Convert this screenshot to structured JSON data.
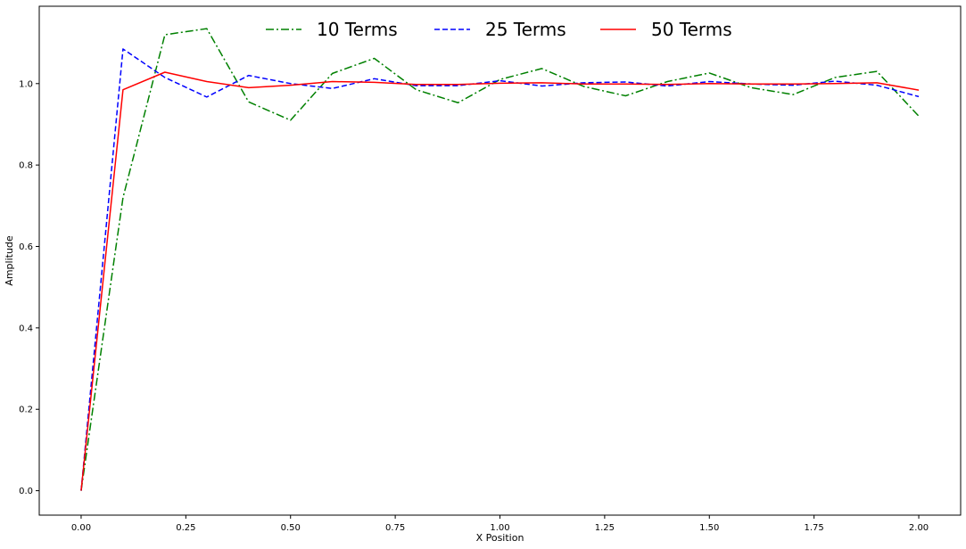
{
  "chart_data": {
    "type": "line",
    "title": "",
    "xlabel": "X Position",
    "ylabel": "Amplitude",
    "xlim": [
      -0.1,
      2.1
    ],
    "ylim": [
      -0.06,
      1.19
    ],
    "xticks": [
      0.0,
      0.25,
      0.5,
      0.75,
      1.0,
      1.25,
      1.5,
      1.75,
      2.0
    ],
    "xtick_labels": [
      "0.00",
      "0.25",
      "0.50",
      "0.75",
      "1.00",
      "1.25",
      "1.50",
      "1.75",
      "2.00"
    ],
    "yticks": [
      0.0,
      0.2,
      0.4,
      0.6,
      0.8,
      1.0
    ],
    "ytick_labels": [
      "0.0",
      "0.2",
      "0.4",
      "0.6",
      "0.8",
      "1.0"
    ],
    "grid": false,
    "legend_position": "top-center",
    "x": [
      0.0,
      0.1,
      0.2,
      0.3,
      0.4,
      0.5,
      0.6,
      0.7,
      0.8,
      0.9,
      1.0,
      1.1,
      1.2,
      1.3,
      1.4,
      1.5,
      1.6,
      1.7,
      1.8,
      1.9,
      2.0
    ],
    "series": [
      {
        "name": "10 Terms",
        "color": "#008000",
        "linestyle": "dashdot",
        "values": [
          0.0,
          0.72,
          1.12,
          1.135,
          0.955,
          0.91,
          1.025,
          1.062,
          0.985,
          0.953,
          1.01,
          1.037,
          0.993,
          0.97,
          1.005,
          1.026,
          0.99,
          0.973,
          1.015,
          1.03,
          0.92
        ]
      },
      {
        "name": "25 Terms",
        "color": "#0000ff",
        "linestyle": "dashed",
        "values": [
          0.0,
          1.085,
          1.015,
          0.967,
          1.02,
          1.0,
          0.988,
          1.012,
          0.995,
          0.995,
          1.007,
          0.994,
          1.002,
          1.004,
          0.994,
          1.005,
          0.999,
          0.996,
          1.006,
          0.996,
          0.968
        ]
      },
      {
        "name": "50 Terms",
        "color": "#ff0000",
        "linestyle": "solid",
        "values": [
          0.0,
          0.985,
          1.028,
          1.005,
          0.99,
          0.996,
          1.005,
          1.003,
          0.998,
          0.998,
          1.001,
          1.002,
          0.999,
          0.999,
          0.998,
          1.0,
          0.999,
          0.999,
          1.0,
          1.002,
          0.984
        ]
      }
    ]
  }
}
